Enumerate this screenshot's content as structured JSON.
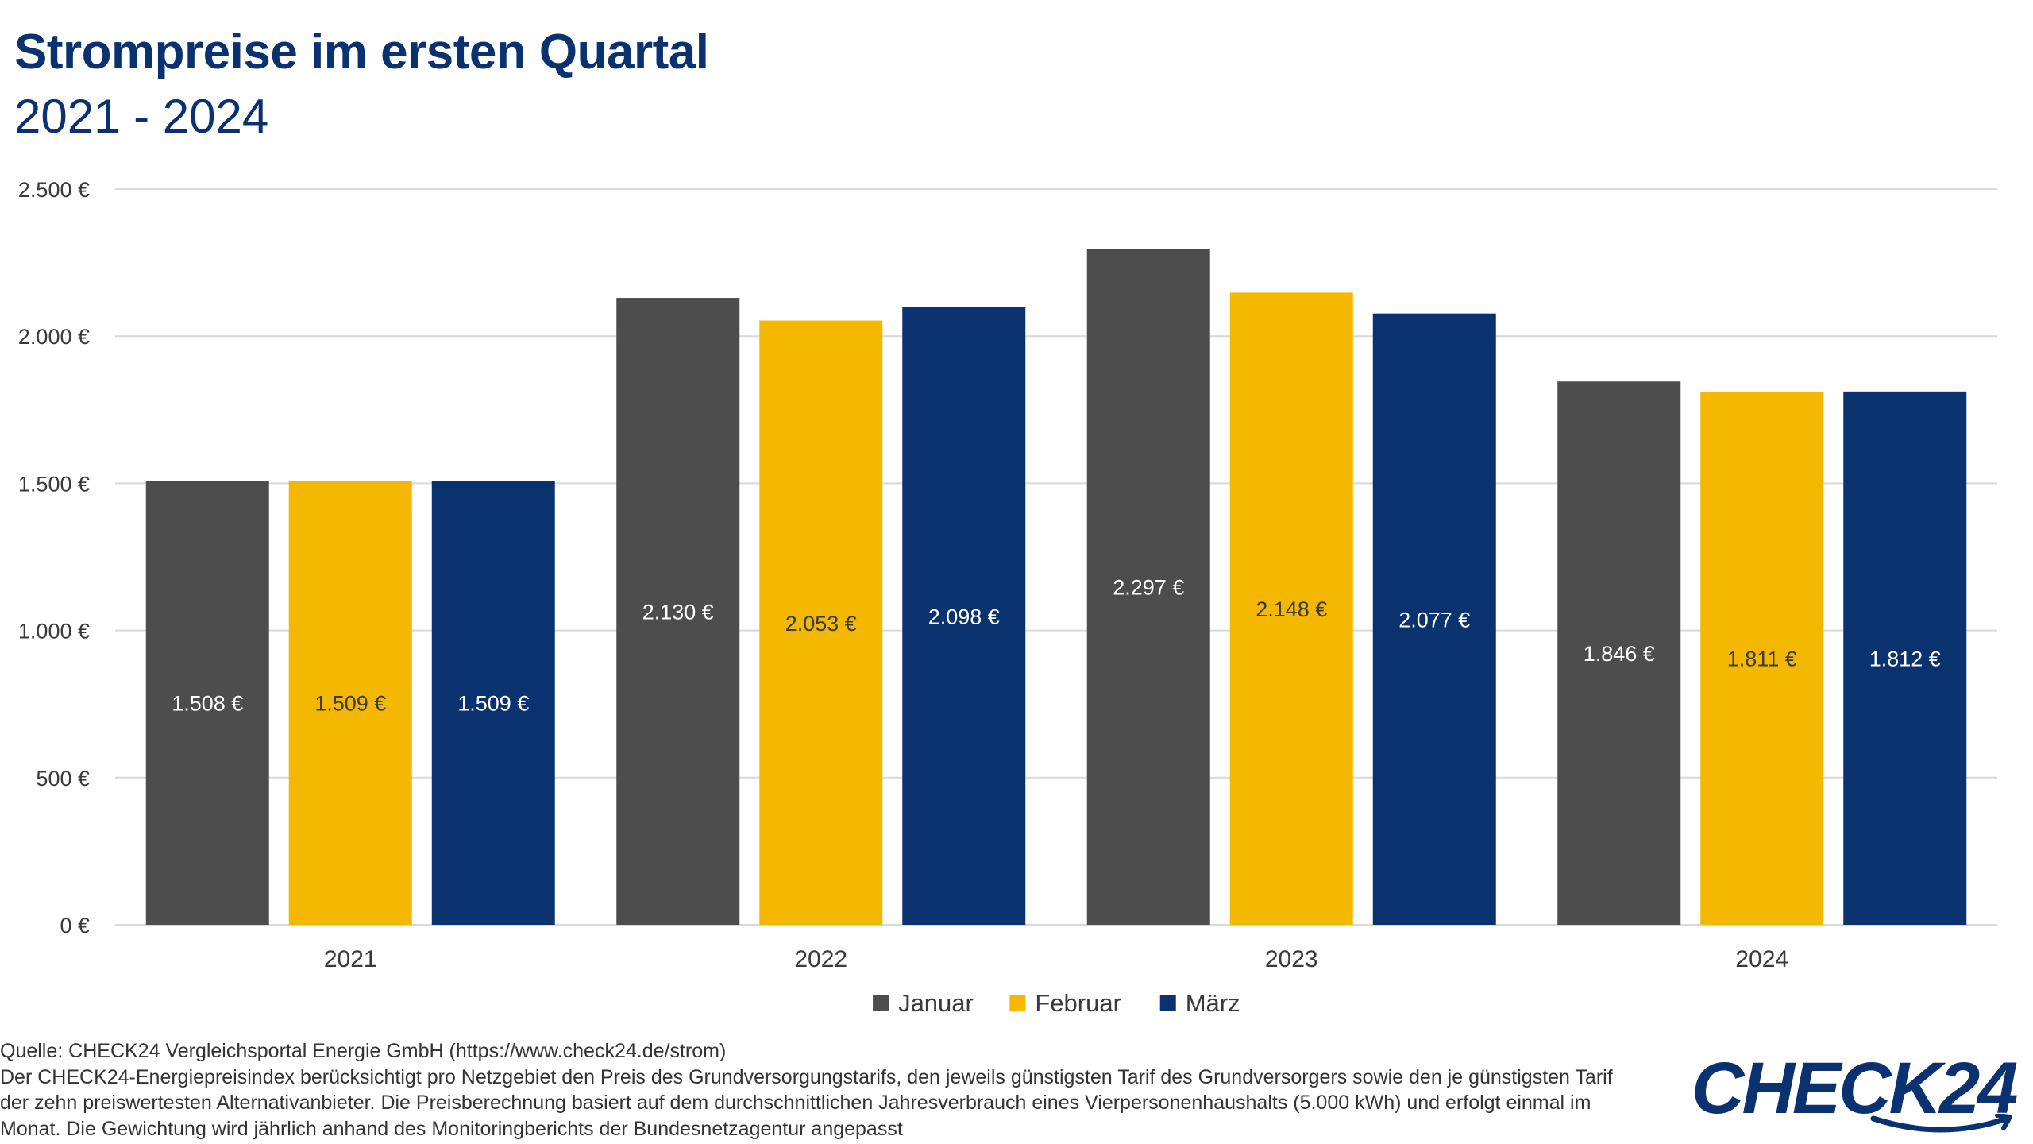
{
  "header": {
    "title": "Strompreise im ersten Quartal",
    "subtitle": "2021 - 2024"
  },
  "chart_data": {
    "type": "bar",
    "categories": [
      "2021",
      "2022",
      "2023",
      "2024"
    ],
    "series": [
      {
        "name": "Januar",
        "color": "#4d4d4d",
        "label_color": "#ffffff",
        "values": [
          1508,
          2130,
          2297,
          1846
        ],
        "labels": [
          "1.508 €",
          "2.130 €",
          "2.297 €",
          "1.846 €"
        ]
      },
      {
        "name": "Februar",
        "color": "#f5b800",
        "label_color": "#3a3a3a",
        "values": [
          1509,
          2053,
          2148,
          1811
        ],
        "labels": [
          "1.509 €",
          "2.053 €",
          "2.148 €",
          "1.811 €"
        ]
      },
      {
        "name": "März",
        "color": "#0a326e",
        "label_color": "#ffffff",
        "values": [
          1509,
          2098,
          2077,
          1812
        ],
        "labels": [
          "1.509 €",
          "2.098 €",
          "2.077 €",
          "1.812 €"
        ]
      }
    ],
    "yticks": [
      0,
      500,
      1000,
      1500,
      2000,
      2500
    ],
    "ytick_labels": [
      "0 €",
      "500 €",
      "1.000 €",
      "1.500 €",
      "2.000 €",
      "2.500 €"
    ],
    "ylim": [
      0,
      2500
    ],
    "grid": true,
    "legend_position": "bottom-center",
    "xlabel": "",
    "ylabel": ""
  },
  "footer": {
    "source_lines": [
      "Quelle: CHECK24 Vergleichsportal Energie GmbH (https://www.check24.de/strom)",
      "Der CHECK24-Energiepreisindex berücksichtigt pro Netzgebiet den Preis des Grundversorgungstarifs, den jeweils günstigsten Tarif des Grundversorgers sowie den je günstigsten Tarif",
      "der zehn preiswertesten Alternativanbieter. Die Preisberechnung basiert auf dem durchschnittlichen Jahresverbrauch eines Vierpersonenhaushalts (5.000 kWh) und erfolgt einmal im",
      "Monat. Die Gewichtung wird jährlich anhand des Monitoringberichts der Bundesnetzagentur angepasst"
    ],
    "logo_text": "CHECK24"
  },
  "colors": {
    "title": "#0b3270",
    "grid": "#d9d9d9",
    "axis_text": "#3a3a3a"
  }
}
